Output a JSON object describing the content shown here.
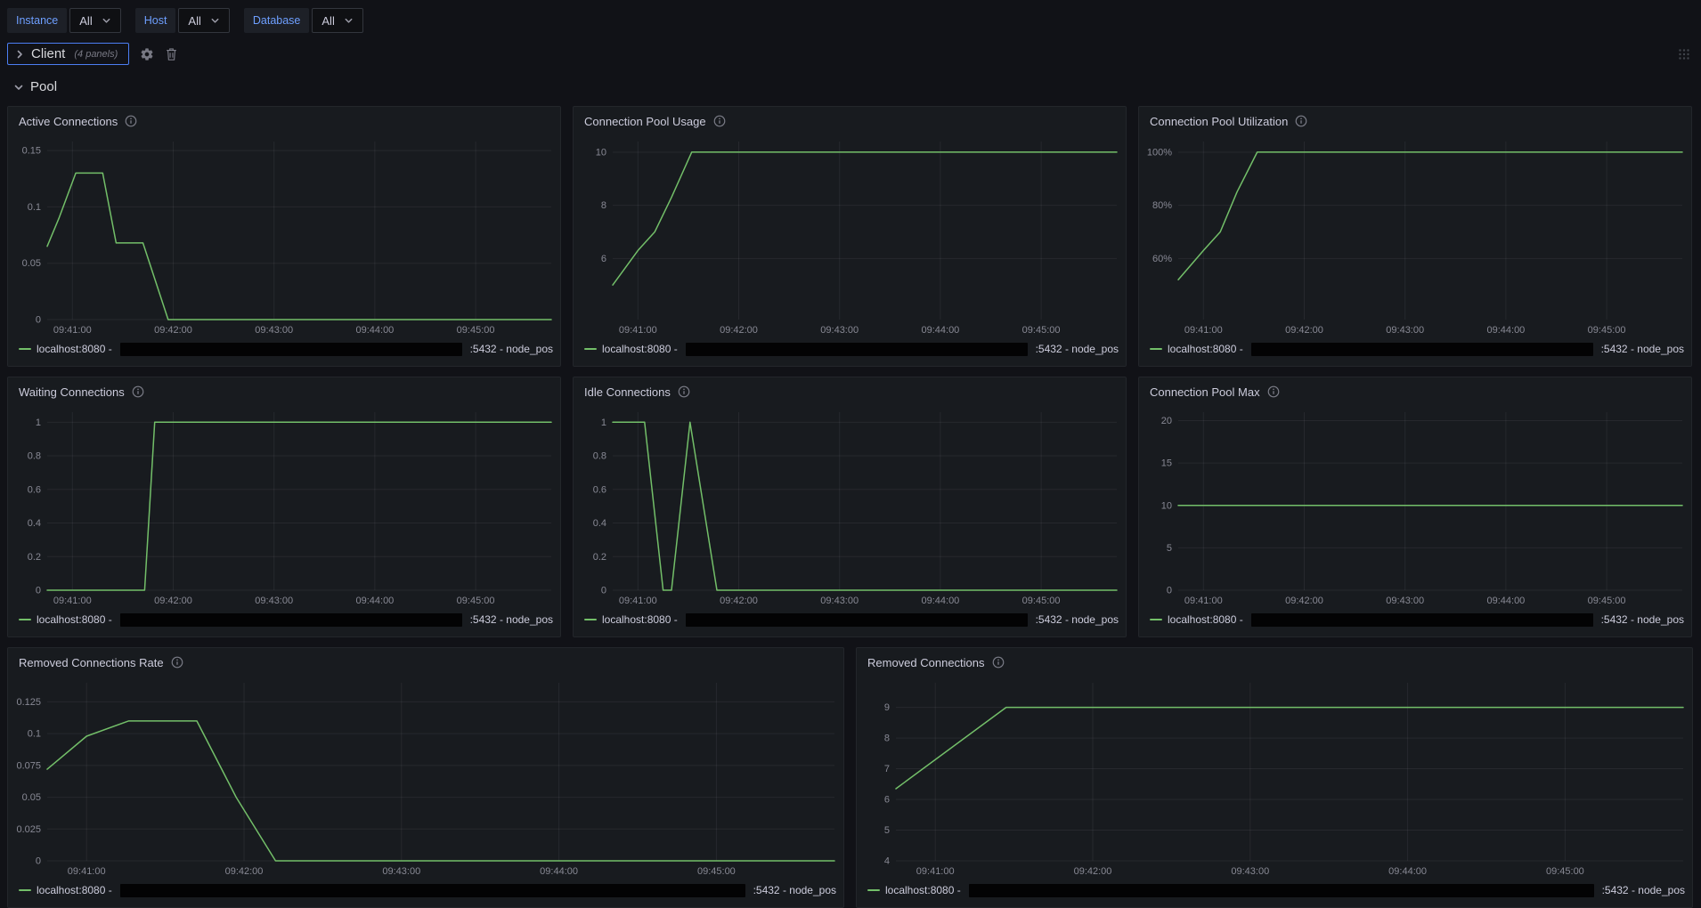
{
  "topbar": {
    "filters": [
      {
        "label": "Instance",
        "value": "All"
      },
      {
        "label": "Host",
        "value": "All"
      },
      {
        "label": "Database",
        "value": "All"
      }
    ]
  },
  "rows": {
    "client": {
      "title": "Client",
      "meta": "(4 panels)",
      "state": "collapsed"
    },
    "pool": {
      "title": "Pool",
      "state": "expanded"
    }
  },
  "legend": {
    "prefix": "localhost:8080 -",
    "suffix": ":5432 - node_pos"
  },
  "colors": {
    "series_green": "#73bf69",
    "accent_blue": "#6e9fff",
    "focus_outline": "#4c7ef3",
    "panel_bg": "#181b1f",
    "page_bg": "#111217"
  },
  "chart_data": [
    {
      "id": "active-connections",
      "title": "Active Connections",
      "type": "line",
      "color": "#73bf69",
      "x_ticks": [
        "09:41:00",
        "09:42:00",
        "09:43:00",
        "09:44:00",
        "09:45:00"
      ],
      "x_tick_seconds": [
        0,
        60,
        120,
        180,
        240
      ],
      "xlim": [
        -15,
        285
      ],
      "y_tick_labels": [
        "0",
        "0.05",
        "0.1",
        "0.15"
      ],
      "y_tick_values": [
        0,
        0.05,
        0.1,
        0.15
      ],
      "ylim": [
        0,
        0.158
      ],
      "points": [
        [
          -15,
          0.065
        ],
        [
          -8,
          0.09
        ],
        [
          2,
          0.13
        ],
        [
          18,
          0.13
        ],
        [
          26,
          0.068
        ],
        [
          42,
          0.068
        ],
        [
          57,
          0
        ],
        [
          285,
          0
        ]
      ]
    },
    {
      "id": "connection-pool-usage",
      "title": "Connection Pool Usage",
      "type": "line",
      "color": "#73bf69",
      "x_ticks": [
        "09:41:00",
        "09:42:00",
        "09:43:00",
        "09:44:00",
        "09:45:00"
      ],
      "x_tick_seconds": [
        0,
        60,
        120,
        180,
        240
      ],
      "xlim": [
        -15,
        285
      ],
      "y_tick_labels": [
        "6",
        "8",
        "10"
      ],
      "y_tick_values": [
        6,
        8,
        10
      ],
      "ylim": [
        3.7,
        10.4
      ],
      "points": [
        [
          -15,
          5
        ],
        [
          0,
          6.3
        ],
        [
          10,
          7
        ],
        [
          20,
          8.3
        ],
        [
          32,
          10
        ],
        [
          285,
          10
        ]
      ]
    },
    {
      "id": "connection-pool-utilization",
      "title": "Connection Pool Utilization",
      "type": "line",
      "color": "#73bf69",
      "x_ticks": [
        "09:41:00",
        "09:42:00",
        "09:43:00",
        "09:44:00",
        "09:45:00"
      ],
      "x_tick_seconds": [
        0,
        60,
        120,
        180,
        240
      ],
      "xlim": [
        -15,
        285
      ],
      "y_tick_labels": [
        "60%",
        "80%",
        "100%"
      ],
      "y_tick_values": [
        60,
        80,
        100
      ],
      "ylim": [
        37,
        104
      ],
      "points": [
        [
          -15,
          52
        ],
        [
          0,
          63
        ],
        [
          10,
          70
        ],
        [
          20,
          85
        ],
        [
          32,
          100
        ],
        [
          285,
          100
        ]
      ]
    },
    {
      "id": "waiting-connections",
      "title": "Waiting Connections",
      "type": "line",
      "color": "#73bf69",
      "x_ticks": [
        "09:41:00",
        "09:42:00",
        "09:43:00",
        "09:44:00",
        "09:45:00"
      ],
      "x_tick_seconds": [
        0,
        60,
        120,
        180,
        240
      ],
      "xlim": [
        -15,
        285
      ],
      "y_tick_labels": [
        "0",
        "0.2",
        "0.4",
        "0.6",
        "0.8",
        "1"
      ],
      "y_tick_values": [
        0,
        0.2,
        0.4,
        0.6,
        0.8,
        1
      ],
      "ylim": [
        0,
        1.06
      ],
      "points": [
        [
          -15,
          0
        ],
        [
          43,
          0
        ],
        [
          49,
          1
        ],
        [
          285,
          1
        ]
      ]
    },
    {
      "id": "idle-connections",
      "title": "Idle Connections",
      "type": "line",
      "color": "#73bf69",
      "x_ticks": [
        "09:41:00",
        "09:42:00",
        "09:43:00",
        "09:44:00",
        "09:45:00"
      ],
      "x_tick_seconds": [
        0,
        60,
        120,
        180,
        240
      ],
      "xlim": [
        -15,
        285
      ],
      "y_tick_labels": [
        "0",
        "0.2",
        "0.4",
        "0.6",
        "0.8",
        "1"
      ],
      "y_tick_values": [
        0,
        0.2,
        0.4,
        0.6,
        0.8,
        1
      ],
      "ylim": [
        0,
        1.06
      ],
      "points": [
        [
          -15,
          1
        ],
        [
          4,
          1
        ],
        [
          15,
          0
        ],
        [
          20,
          0
        ],
        [
          31,
          1
        ],
        [
          47,
          0
        ],
        [
          285,
          0
        ]
      ]
    },
    {
      "id": "connection-pool-max",
      "title": "Connection Pool Max",
      "type": "line",
      "color": "#73bf69",
      "x_ticks": [
        "09:41:00",
        "09:42:00",
        "09:43:00",
        "09:44:00",
        "09:45:00"
      ],
      "x_tick_seconds": [
        0,
        60,
        120,
        180,
        240
      ],
      "xlim": [
        -15,
        285
      ],
      "y_tick_labels": [
        "0",
        "5",
        "10",
        "15",
        "20"
      ],
      "y_tick_values": [
        0,
        5,
        10,
        15,
        20
      ],
      "ylim": [
        0,
        21
      ],
      "points": [
        [
          -15,
          10
        ],
        [
          285,
          10
        ]
      ]
    },
    {
      "id": "removed-connections-rate",
      "title": "Removed Connections Rate",
      "type": "line",
      "color": "#73bf69",
      "x_ticks": [
        "09:41:00",
        "09:42:00",
        "09:43:00",
        "09:44:00",
        "09:45:00"
      ],
      "x_tick_seconds": [
        0,
        60,
        120,
        180,
        240
      ],
      "xlim": [
        -15,
        285
      ],
      "y_tick_labels": [
        "0",
        "0.025",
        "0.05",
        "0.075",
        "0.1",
        "0.125"
      ],
      "y_tick_values": [
        0,
        0.025,
        0.05,
        0.075,
        0.1,
        0.125
      ],
      "ylim": [
        0,
        0.14
      ],
      "points": [
        [
          -15,
          0.072
        ],
        [
          0,
          0.098
        ],
        [
          16,
          0.11
        ],
        [
          42,
          0.11
        ],
        [
          57,
          0.05
        ],
        [
          72,
          0
        ],
        [
          285,
          0
        ]
      ]
    },
    {
      "id": "removed-connections",
      "title": "Removed Connections",
      "type": "line",
      "color": "#73bf69",
      "x_ticks": [
        "09:41:00",
        "09:42:00",
        "09:43:00",
        "09:44:00",
        "09:45:00"
      ],
      "x_tick_seconds": [
        0,
        60,
        120,
        180,
        240
      ],
      "xlim": [
        -15,
        285
      ],
      "y_tick_labels": [
        "4",
        "5",
        "6",
        "7",
        "8",
        "9"
      ],
      "y_tick_values": [
        4,
        5,
        6,
        7,
        8,
        9
      ],
      "ylim": [
        4,
        9.8
      ],
      "points": [
        [
          -15,
          6.35
        ],
        [
          27,
          9
        ],
        [
          285,
          9
        ]
      ]
    }
  ]
}
